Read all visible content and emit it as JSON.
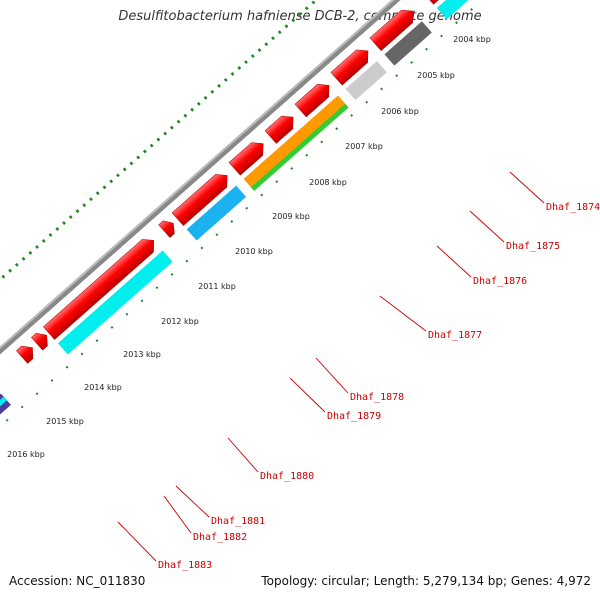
{
  "title": "Desulfitobacterium hafniense DCB-2, complete genome",
  "accession": "Accession: NC_011830",
  "summary": "Topology: circular; Length: 5,279,134 bp; Genes: 4,972",
  "kbp_labels": [
    "2004 kbp",
    "2005 kbp",
    "2006 kbp",
    "2007 kbp",
    "2008 kbp",
    "2009 kbp",
    "2010 kbp",
    "2011 kbp",
    "2012 kbp",
    "2013 kbp",
    "2014 kbp",
    "2015 kbp",
    "2016 kbp"
  ],
  "gene_labels": [
    "Dhaf_1874",
    "Dhaf_1875",
    "Dhaf_1876",
    "Dhaf_1877",
    "Dhaf_1878",
    "Dhaf_1879",
    "Dhaf_1880",
    "Dhaf_1881",
    "Dhaf_1882",
    "Dhaf_1883"
  ],
  "colors": {
    "gene": "#ff0000",
    "cds_cyan": "#00eeee",
    "cds_blue": "#1ab2f0",
    "cds_grey_dark": "#666666",
    "cds_grey_light": "#cccccc",
    "cds_orange": "#ff9900",
    "cds_green": "#33cc33",
    "cds_purple": "#4b3f99",
    "backbone": "#999999",
    "ticks": "#228822",
    "label": "#cc0000"
  }
}
